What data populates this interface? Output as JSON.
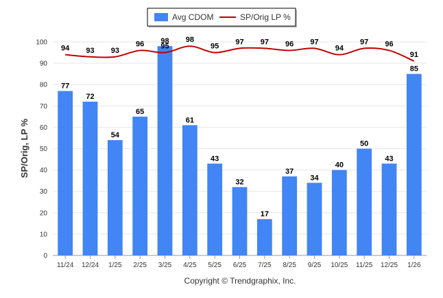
{
  "chart_data": {
    "type": "bar",
    "categories": [
      "11/24",
      "12/24",
      "1/25",
      "2/25",
      "3/25",
      "4/25",
      "5/25",
      "6/25",
      "7/25",
      "8/25",
      "9/25",
      "10/25",
      "11/25",
      "12/25",
      "1/26"
    ],
    "series": [
      {
        "name": "Avg CDOM",
        "kind": "bar",
        "color": "#4285f4",
        "values": [
          77,
          72,
          54,
          65,
          98,
          61,
          43,
          32,
          17,
          37,
          34,
          40,
          50,
          43,
          85
        ]
      },
      {
        "name": "SP/Orig LP %",
        "kind": "line",
        "color": "#c00000",
        "values": [
          94,
          93,
          93,
          96,
          95,
          98,
          95,
          97,
          97,
          96,
          97,
          94,
          97,
          96,
          91
        ]
      }
    ],
    "ylabel": "SP/Orig, LP %",
    "xlabel": "",
    "ylim": [
      0,
      100
    ],
    "yticks": [
      0,
      10,
      20,
      30,
      40,
      50,
      60,
      70,
      80,
      90,
      100
    ],
    "grid": true,
    "legend_position": "top-center"
  },
  "footer": {
    "copyright": "Copyright © Trendgraphix, Inc."
  }
}
